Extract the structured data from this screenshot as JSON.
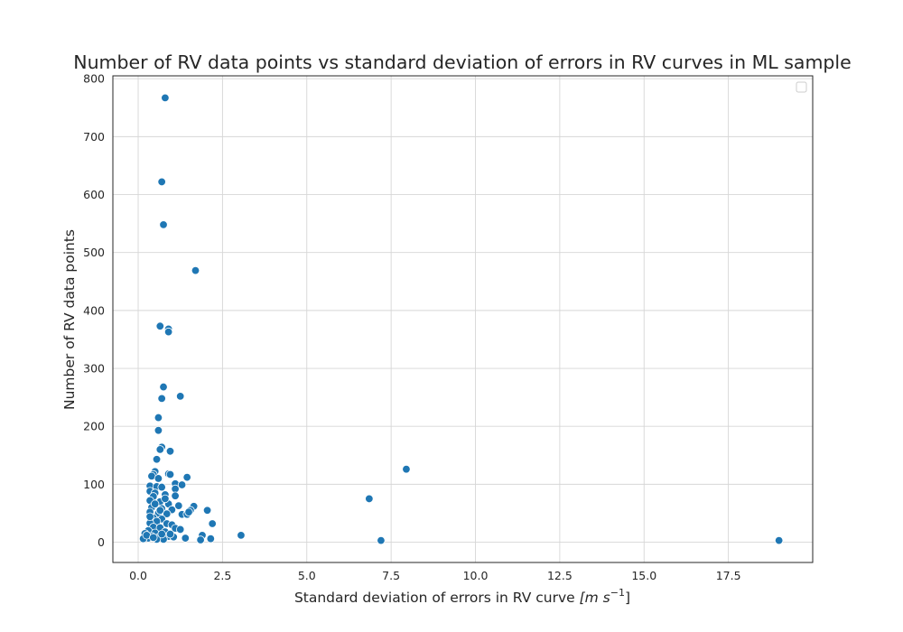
{
  "chart_data": {
    "type": "scatter",
    "title": "Number of RV data points vs standard deviation of errors in RV curves in ML sample",
    "xlabel_main": "Standard deviation of errors in RV curve ",
    "xlabel_unit": "[m s",
    "xlabel_exp": "−1",
    "xlabel_close": "]",
    "ylabel": "Number of RV data points",
    "xlim": [
      -0.75,
      20.0
    ],
    "ylim": [
      -35,
      805
    ],
    "xticks": [
      0.0,
      2.5,
      5.0,
      7.5,
      10.0,
      12.5,
      15.0,
      17.5
    ],
    "xtick_labels": [
      "0.0",
      "2.5",
      "5.0",
      "7.5",
      "10.0",
      "12.5",
      "15.0",
      "17.5"
    ],
    "yticks": [
      0,
      100,
      200,
      300,
      400,
      500,
      600,
      700,
      800
    ],
    "ytick_labels": [
      "0",
      "100",
      "200",
      "300",
      "400",
      "500",
      "600",
      "700",
      "800"
    ],
    "grid": true,
    "legend": "top-right, empty",
    "color": "#1f77b4",
    "points": [
      [
        0.8,
        767
      ],
      [
        0.7,
        622
      ],
      [
        0.75,
        548
      ],
      [
        1.7,
        469
      ],
      [
        0.65,
        373
      ],
      [
        0.9,
        368
      ],
      [
        0.9,
        363
      ],
      [
        0.75,
        268
      ],
      [
        1.25,
        252
      ],
      [
        0.7,
        248
      ],
      [
        0.6,
        215
      ],
      [
        0.6,
        193
      ],
      [
        0.7,
        164
      ],
      [
        0.65,
        160
      ],
      [
        0.95,
        157
      ],
      [
        0.55,
        143
      ],
      [
        7.95,
        126
      ],
      [
        0.5,
        122
      ],
      [
        0.9,
        118
      ],
      [
        0.95,
        117
      ],
      [
        1.45,
        112
      ],
      [
        0.45,
        117
      ],
      [
        0.4,
        114
      ],
      [
        0.6,
        110
      ],
      [
        1.1,
        101
      ],
      [
        1.3,
        99
      ],
      [
        0.35,
        97
      ],
      [
        0.55,
        96
      ],
      [
        0.7,
        95
      ],
      [
        1.1,
        92
      ],
      [
        0.35,
        88
      ],
      [
        0.5,
        85
      ],
      [
        0.8,
        82
      ],
      [
        1.1,
        80
      ],
      [
        0.45,
        79
      ],
      [
        6.85,
        75
      ],
      [
        0.35,
        72
      ],
      [
        0.65,
        70
      ],
      [
        0.9,
        66
      ],
      [
        1.2,
        63
      ],
      [
        1.65,
        62
      ],
      [
        0.4,
        60
      ],
      [
        0.7,
        58
      ],
      [
        1.0,
        56
      ],
      [
        1.55,
        55
      ],
      [
        2.05,
        55
      ],
      [
        0.35,
        52
      ],
      [
        0.6,
        50
      ],
      [
        0.85,
        49
      ],
      [
        1.3,
        48
      ],
      [
        1.45,
        48
      ],
      [
        0.45,
        42
      ],
      [
        0.7,
        40
      ],
      [
        0.55,
        36
      ],
      [
        0.35,
        33
      ],
      [
        0.85,
        32
      ],
      [
        1.0,
        30
      ],
      [
        2.2,
        32
      ],
      [
        0.45,
        26
      ],
      [
        0.65,
        25
      ],
      [
        1.1,
        24
      ],
      [
        0.3,
        20
      ],
      [
        0.2,
        15
      ],
      [
        0.5,
        16
      ],
      [
        0.8,
        18
      ],
      [
        1.25,
        22
      ],
      [
        0.4,
        10
      ],
      [
        0.6,
        8
      ],
      [
        0.3,
        7
      ],
      [
        0.15,
        6
      ],
      [
        0.9,
        10
      ],
      [
        1.05,
        9
      ],
      [
        1.4,
        7
      ],
      [
        1.9,
        12
      ],
      [
        0.75,
        5
      ],
      [
        0.55,
        5
      ],
      [
        1.85,
        4
      ],
      [
        2.15,
        6
      ],
      [
        3.05,
        12
      ],
      [
        7.2,
        3
      ],
      [
        19.0,
        3
      ],
      [
        0.25,
        12
      ],
      [
        0.95,
        14
      ],
      [
        0.65,
        55
      ],
      [
        0.5,
        66
      ],
      [
        0.8,
        75
      ],
      [
        0.35,
        44
      ],
      [
        1.5,
        52
      ],
      [
        0.7,
        14
      ],
      [
        0.45,
        8
      ]
    ]
  }
}
